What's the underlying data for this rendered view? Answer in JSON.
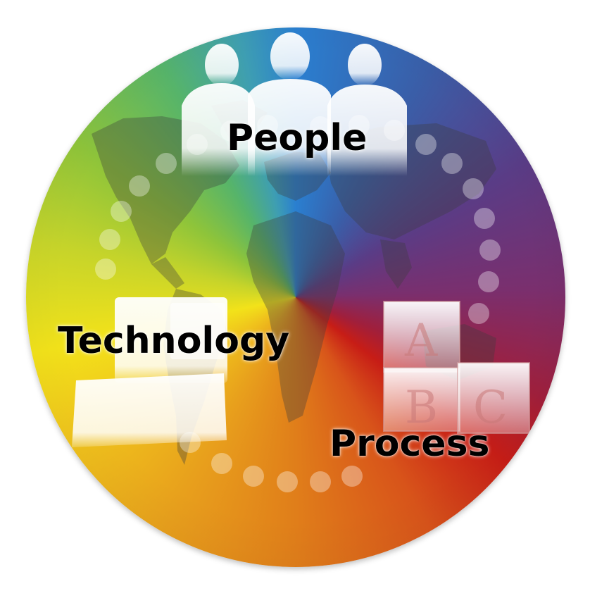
{
  "labels": {
    "people": "People",
    "technology": "Technology",
    "process": "Process"
  },
  "blocks": {
    "letters": [
      "A",
      "B",
      "C"
    ]
  },
  "colors": {
    "people_region": "#2a7fd0",
    "process_region": "#c71d16",
    "technology_region": "#f2e21a"
  },
  "icons": [
    "people-silhouettes-icon",
    "world-map-icon",
    "abc-blocks-icon",
    "computer-icon",
    "dot-ring-icon"
  ]
}
